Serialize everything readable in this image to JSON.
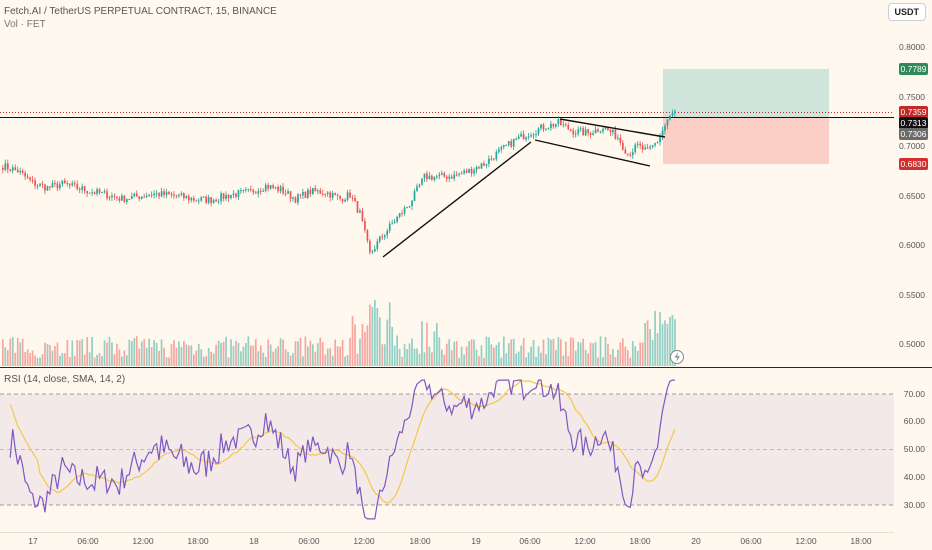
{
  "header": {
    "symbol_title": "Fetch.AI / TetherUS PERPETUAL CONTRACT, 15, BINANCE",
    "volume_label": "Vol · FET",
    "currency_button": "USDT"
  },
  "price_axis": {
    "ticks": [
      "0.8000",
      "0.7500",
      "0.7000",
      "0.6500",
      "0.6000",
      "0.5500",
      "0.5000"
    ],
    "badges": {
      "take_profit": "0.7789",
      "last_price": "0.7359",
      "entry": "0.7313",
      "crosshair": "0.7306",
      "stop_loss": "0.6830"
    },
    "colors": {
      "take_profit": "#2e8b57",
      "last_price": "#c62828",
      "entry": "#111111",
      "crosshair": "#6b6b6b",
      "stop_loss": "#d32f2f"
    }
  },
  "rsi": {
    "label": "RSI (14, close, SMA, 14, 2)",
    "ticks": [
      "70.00",
      "60.00",
      "50.00",
      "40.00",
      "30.00"
    ],
    "line_color": "#7e57c2",
    "ma_color": "#f3c84a"
  },
  "time_axis": {
    "labels": [
      "17",
      "06:00",
      "12:00",
      "18:00",
      "18",
      "06:00",
      "12:00",
      "18:00",
      "19",
      "06:00",
      "12:00",
      "18:00",
      "20",
      "06:00",
      "12:00",
      "18:00"
    ]
  },
  "colors": {
    "up": "#26a69a",
    "down": "#ef5350",
    "background": "#fff8ee"
  },
  "chart_data": {
    "type": "candlestick",
    "timeframe": "15",
    "ylim": [
      0.48,
      0.83
    ],
    "key_levels": {
      "take_profit": 0.7789,
      "last": 0.7359,
      "entry": 0.7313,
      "stop_loss": 0.683
    },
    "close_anchors": [
      [
        0,
        0.681
      ],
      [
        6,
        0.676
      ],
      [
        12,
        0.664
      ],
      [
        18,
        0.659
      ],
      [
        24,
        0.663
      ],
      [
        30,
        0.659
      ],
      [
        36,
        0.655
      ],
      [
        42,
        0.652
      ],
      [
        48,
        0.648
      ],
      [
        54,
        0.65
      ],
      [
        60,
        0.653
      ],
      [
        66,
        0.652
      ],
      [
        72,
        0.65
      ],
      [
        78,
        0.647
      ],
      [
        84,
        0.647
      ],
      [
        92,
        0.652
      ],
      [
        100,
        0.655
      ],
      [
        106,
        0.661
      ],
      [
        112,
        0.657
      ],
      [
        118,
        0.648
      ],
      [
        124,
        0.655
      ],
      [
        130,
        0.655
      ],
      [
        136,
        0.648
      ],
      [
        140,
        0.652
      ],
      [
        144,
        0.633
      ],
      [
        148,
        0.592
      ],
      [
        152,
        0.607
      ],
      [
        158,
        0.626
      ],
      [
        164,
        0.643
      ],
      [
        170,
        0.67
      ],
      [
        176,
        0.67
      ],
      [
        182,
        0.671
      ],
      [
        188,
        0.676
      ],
      [
        194,
        0.683
      ],
      [
        200,
        0.695
      ],
      [
        206,
        0.706
      ],
      [
        212,
        0.714
      ],
      [
        218,
        0.72
      ],
      [
        224,
        0.724
      ],
      [
        230,
        0.716
      ],
      [
        236,
        0.714
      ],
      [
        242,
        0.72
      ],
      [
        248,
        0.71
      ],
      [
        252,
        0.693
      ],
      [
        256,
        0.701
      ],
      [
        260,
        0.695
      ],
      [
        264,
        0.706
      ],
      [
        268,
        0.727
      ],
      [
        271,
        0.736
      ]
    ]
  }
}
